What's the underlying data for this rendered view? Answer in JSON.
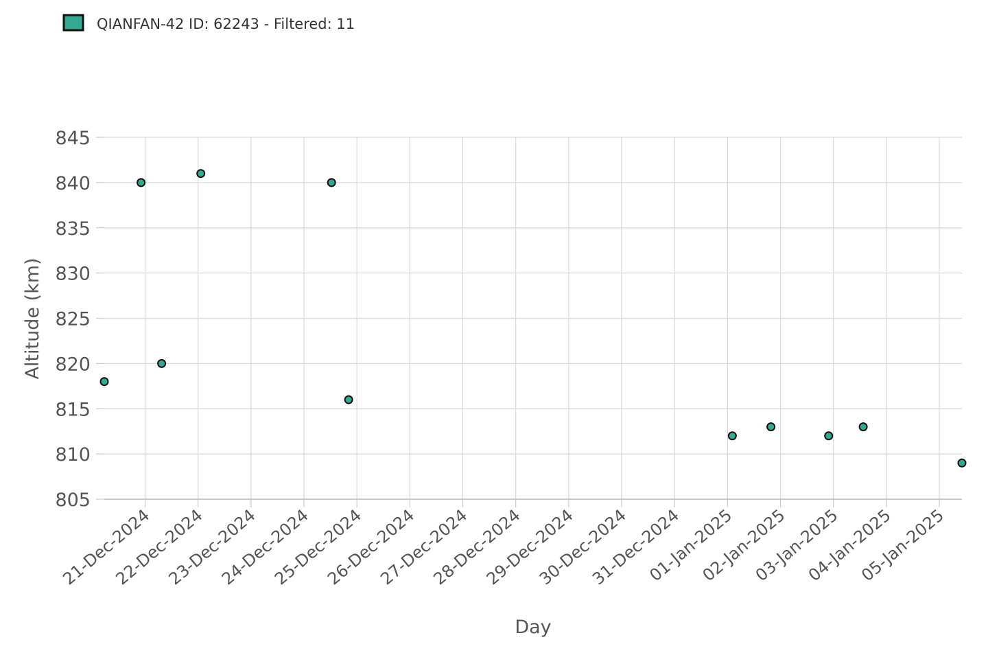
{
  "chart_data": {
    "type": "scatter",
    "x_label": "Day",
    "y_label": "Altitude (km)",
    "series": [
      {
        "name": "QIANFAN-42 ID: 62243 - Filtered: 11",
        "color": "#35a891",
        "x": [
          "2024-12-20T05:30",
          "2024-12-20T22:10",
          "2024-12-21T07:30",
          "2024-12-22T01:15",
          "2024-12-24T12:30",
          "2024-12-24T20:15",
          "2025-01-01T02:10",
          "2025-01-01T19:40",
          "2025-01-02T21:50",
          "2025-01-03T13:30",
          "2025-01-05T10:15"
        ],
        "values": [
          818,
          840,
          820,
          841,
          840,
          816,
          812,
          813,
          812,
          813,
          809
        ]
      }
    ],
    "xlim": [
      "2024-12-20T05:30",
      "2025-01-05T10:15"
    ],
    "ylim": [
      805,
      845
    ],
    "xticks": [
      {
        "value": "2024-12-21T00:00",
        "label": "21-Dec-2024"
      },
      {
        "value": "2024-12-22T00:00",
        "label": "22-Dec-2024"
      },
      {
        "value": "2024-12-23T00:00",
        "label": "23-Dec-2024"
      },
      {
        "value": "2024-12-24T00:00",
        "label": "24-Dec-2024"
      },
      {
        "value": "2024-12-25T00:00",
        "label": "25-Dec-2024"
      },
      {
        "value": "2024-12-26T00:00",
        "label": "26-Dec-2024"
      },
      {
        "value": "2024-12-27T00:00",
        "label": "27-Dec-2024"
      },
      {
        "value": "2024-12-28T00:00",
        "label": "28-Dec-2024"
      },
      {
        "value": "2024-12-29T00:00",
        "label": "29-Dec-2024"
      },
      {
        "value": "2024-12-30T00:00",
        "label": "30-Dec-2024"
      },
      {
        "value": "2024-12-31T00:00",
        "label": "31-Dec-2024"
      },
      {
        "value": "2025-01-01T00:00",
        "label": "01-Jan-2025"
      },
      {
        "value": "2025-01-02T00:00",
        "label": "02-Jan-2025"
      },
      {
        "value": "2025-01-03T00:00",
        "label": "03-Jan-2025"
      },
      {
        "value": "2025-01-04T00:00",
        "label": "04-Jan-2025"
      },
      {
        "value": "2025-01-05T00:00",
        "label": "05-Jan-2025"
      }
    ],
    "yticks": [
      805,
      810,
      815,
      820,
      825,
      830,
      835,
      840,
      845
    ],
    "grid": true
  }
}
